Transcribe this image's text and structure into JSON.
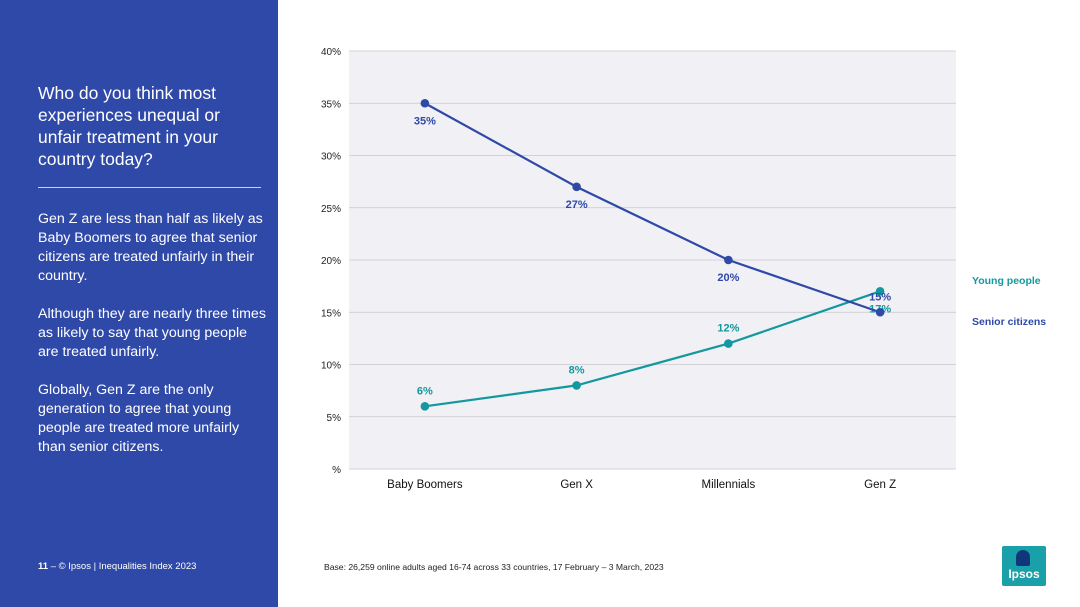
{
  "left_panel": {
    "question": "Who do you think most experiences unequal or unfair treatment in your country today?",
    "paragraphs": [
      "Gen Z are less than half as likely as Baby Boomers to agree that senior citizens are treated unfairly in their country.",
      "Although they are nearly three times as likely to say that young people are treated unfairly.",
      "Globally, Gen Z are the only generation to agree that young people are treated more unfairly than senior citizens."
    ],
    "footer_page": "11",
    "footer_text": "© Ipsos | Inequalities Index 2023"
  },
  "base_note": "Base: 26,259 online adults aged 16-74 across 33 countries, 17 February – 3 March, 2023",
  "logo_text": "Ipsos",
  "colors": {
    "panel": "#2f49a8",
    "young": "#13989f",
    "senior": "#2f49a8",
    "plot_bg": "#f1f0f5",
    "grid": "#c8c8cc"
  },
  "chart_data": {
    "type": "line",
    "categories": [
      "Baby Boomers",
      "Gen X",
      "Millennials",
      "Gen Z"
    ],
    "series": [
      {
        "name": "Young people",
        "values": [
          6,
          8,
          12,
          17
        ],
        "color": "#13989f"
      },
      {
        "name": "Senior citizens",
        "values": [
          35,
          27,
          20,
          15
        ],
        "color": "#2f49a8"
      }
    ],
    "value_labels": {
      "Young people": [
        "6%",
        "8%",
        "12%",
        "17%"
      ],
      "Senior citizens": [
        "35%",
        "27%",
        "20%",
        "15%"
      ]
    },
    "yticks": [
      "%",
      "5%",
      "10%",
      "15%",
      "20%",
      "25%",
      "30%",
      "35%",
      "40%"
    ],
    "ylim": [
      0,
      40
    ],
    "grid": true,
    "legend_position": "right"
  }
}
